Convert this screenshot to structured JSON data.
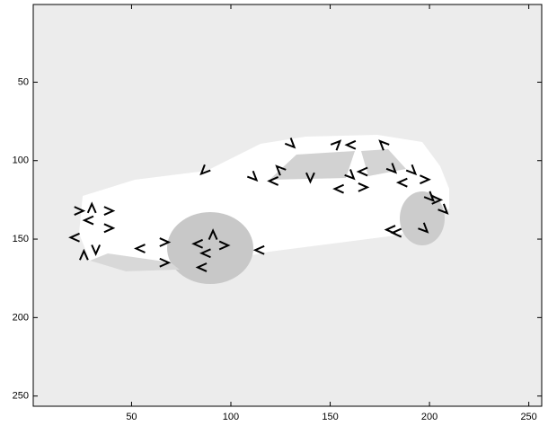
{
  "chart_data": {
    "type": "image-keypoints",
    "xlim": [
      0.5,
      256.5
    ],
    "ylim": [
      0.5,
      256.5
    ],
    "xticks": [
      50,
      100,
      150,
      200,
      250
    ],
    "yticks": [
      50,
      100,
      150,
      200,
      250
    ],
    "color": "#000000",
    "x": [
      23,
      30,
      38,
      29,
      38,
      22,
      32,
      26,
      55,
      66,
      66,
      84,
      91,
      96,
      88,
      86,
      115,
      87,
      111,
      130,
      125,
      122,
      140,
      153,
      160,
      161,
      155,
      166,
      177,
      167,
      181,
      191,
      187,
      197,
      200,
      207,
      203,
      197,
      181,
      184
    ],
    "values": [
      132,
      131,
      132,
      138,
      143,
      149,
      156,
      161,
      156,
      152,
      165,
      153,
      148,
      154,
      159,
      168,
      157,
      106,
      110,
      89,
      106,
      113,
      110,
      90,
      109,
      90,
      118,
      117,
      90,
      107,
      105,
      106,
      114,
      112,
      123,
      131,
      125,
      143,
      144,
      146
    ],
    "angle": [
      0,
      90,
      0,
      180,
      0,
      180,
      270,
      90,
      180,
      0,
      0,
      180,
      90,
      0,
      180,
      180,
      180,
      225,
      315,
      315,
      135,
      180,
      270,
      45,
      315,
      180,
      180,
      0,
      135,
      180,
      315,
      315,
      180,
      0,
      315,
      315,
      0,
      315,
      180,
      180
    ]
  }
}
